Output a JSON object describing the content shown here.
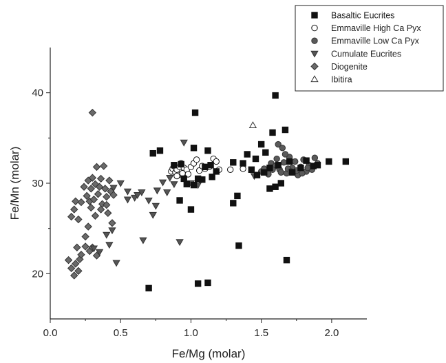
{
  "chart_data": {
    "type": "scatter",
    "title": "",
    "xlabel": "Fe/Mg (molar)",
    "ylabel": "Fe/Mn (molar)",
    "xlim": [
      0.0,
      2.25
    ],
    "ylim": [
      15,
      45
    ],
    "xticks": [
      0.0,
      0.5,
      1.0,
      1.5,
      2.0
    ],
    "xtick_labels": [
      "0.0",
      "0.5",
      "1.0",
      "1.5",
      "2.0"
    ],
    "yticks": [
      20,
      30,
      40
    ],
    "ytick_labels": [
      "20",
      "30",
      "40"
    ],
    "grid": false,
    "legend_position": "top-right",
    "series": [
      {
        "name": "Basaltic Eucrites",
        "marker": "square",
        "color": "#111111",
        "fill": "#111111",
        "points": [
          [
            0.7,
            18.4
          ],
          [
            1.05,
            18.9
          ],
          [
            1.12,
            19.0
          ],
          [
            1.34,
            23.1
          ],
          [
            1.68,
            21.5
          ],
          [
            0.92,
            28.1
          ],
          [
            1.0,
            27.1
          ],
          [
            1.3,
            27.8
          ],
          [
            1.33,
            28.6
          ],
          [
            0.73,
            33.3
          ],
          [
            0.78,
            33.6
          ],
          [
            1.02,
            33.9
          ],
          [
            1.03,
            37.8
          ],
          [
            0.88,
            32.0
          ],
          [
            0.93,
            32.1
          ],
          [
            0.95,
            30.5
          ],
          [
            0.97,
            29.9
          ],
          [
            1.02,
            29.8
          ],
          [
            1.05,
            30.5
          ],
          [
            1.08,
            30.4
          ],
          [
            1.1,
            31.8
          ],
          [
            1.12,
            33.6
          ],
          [
            1.14,
            32.0
          ],
          [
            1.15,
            30.7
          ],
          [
            1.18,
            31.3
          ],
          [
            1.3,
            32.3
          ],
          [
            1.37,
            32.2
          ],
          [
            1.4,
            33.2
          ],
          [
            1.43,
            31.5
          ],
          [
            1.46,
            32.7
          ],
          [
            1.5,
            34.3
          ],
          [
            1.53,
            33.4
          ],
          [
            1.56,
            31.7
          ],
          [
            1.58,
            35.6
          ],
          [
            1.6,
            39.7
          ],
          [
            1.62,
            32.0
          ],
          [
            1.67,
            35.9
          ],
          [
            1.7,
            32.4
          ],
          [
            1.72,
            31.2
          ],
          [
            1.78,
            31.7
          ],
          [
            1.82,
            32.5
          ],
          [
            1.87,
            31.9
          ],
          [
            1.9,
            32.0
          ],
          [
            1.98,
            32.4
          ],
          [
            2.1,
            32.4
          ],
          [
            1.56,
            29.4
          ],
          [
            1.6,
            29.6
          ],
          [
            1.64,
            30.0
          ],
          [
            1.47,
            30.9
          ],
          [
            1.52,
            31.2
          ]
        ]
      },
      {
        "name": "Emmaville High Ca Pyx",
        "marker": "circle",
        "color": "#111111",
        "fill": "#ffffff",
        "points": [
          [
            0.86,
            31.3
          ],
          [
            0.87,
            31.6
          ],
          [
            0.88,
            31.9
          ],
          [
            0.89,
            31.2
          ],
          [
            0.9,
            31.5
          ],
          [
            0.91,
            30.9
          ],
          [
            0.92,
            31.8
          ],
          [
            0.93,
            32.2
          ],
          [
            0.94,
            31.1
          ],
          [
            0.95,
            31.7
          ],
          [
            0.97,
            31.5
          ],
          [
            1.0,
            31.8
          ],
          [
            1.02,
            32.2
          ],
          [
            1.04,
            32.6
          ],
          [
            1.06,
            31.4
          ],
          [
            1.08,
            31.9
          ],
          [
            1.1,
            31.6
          ],
          [
            1.13,
            31.8
          ],
          [
            1.16,
            32.7
          ],
          [
            1.18,
            32.4
          ],
          [
            1.2,
            31.5
          ],
          [
            1.28,
            31.5
          ],
          [
            1.37,
            31.6
          ],
          [
            0.98,
            31.0
          ],
          [
            0.9,
            30.8
          ]
        ]
      },
      {
        "name": "Emmaville Low Ca Pyx",
        "marker": "circle",
        "color": "#333333",
        "fill": "#5a5a5a",
        "points": [
          [
            1.5,
            31.3
          ],
          [
            1.52,
            31.6
          ],
          [
            1.55,
            31.0
          ],
          [
            1.57,
            32.2
          ],
          [
            1.6,
            31.9
          ],
          [
            1.62,
            34.3
          ],
          [
            1.63,
            31.5
          ],
          [
            1.65,
            33.9
          ],
          [
            1.66,
            32.3
          ],
          [
            1.68,
            31.1
          ],
          [
            1.7,
            32.9
          ],
          [
            1.72,
            31.7
          ],
          [
            1.74,
            32.4
          ],
          [
            1.76,
            30.9
          ],
          [
            1.78,
            31.8
          ],
          [
            1.8,
            32.6
          ],
          [
            1.82,
            31.3
          ],
          [
            1.84,
            32.0
          ],
          [
            1.86,
            31.5
          ],
          [
            1.88,
            32.8
          ],
          [
            1.9,
            32.2
          ],
          [
            1.64,
            31.2
          ],
          [
            1.69,
            31.6
          ],
          [
            1.75,
            31.4
          ],
          [
            1.79,
            31.1
          ],
          [
            1.83,
            31.7
          ],
          [
            1.58,
            31.5
          ],
          [
            1.61,
            32.7
          ],
          [
            1.67,
            33.2
          ],
          [
            1.71,
            31.3
          ]
        ]
      },
      {
        "name": "Cumulate Eucrites",
        "marker": "triangle-down",
        "color": "#333333",
        "fill": "#555555",
        "points": [
          [
            0.31,
            22.8
          ],
          [
            0.35,
            22.4
          ],
          [
            0.4,
            24.3
          ],
          [
            0.42,
            23.2
          ],
          [
            0.44,
            24.8
          ],
          [
            0.47,
            21.2
          ],
          [
            0.45,
            29.5
          ],
          [
            0.5,
            30.0
          ],
          [
            0.55,
            29.1
          ],
          [
            0.6,
            28.4
          ],
          [
            0.62,
            28.7
          ],
          [
            0.65,
            29.0
          ],
          [
            0.66,
            23.7
          ],
          [
            0.7,
            28.1
          ],
          [
            0.73,
            26.5
          ],
          [
            0.76,
            29.2
          ],
          [
            0.8,
            30.1
          ],
          [
            0.83,
            29.0
          ],
          [
            0.85,
            30.6
          ],
          [
            0.88,
            29.9
          ],
          [
            0.92,
            23.5
          ],
          [
            0.95,
            34.5
          ],
          [
            1.0,
            30.0
          ],
          [
            1.05,
            29.8
          ],
          [
            1.45,
            30.8
          ],
          [
            0.55,
            28.2
          ],
          [
            0.75,
            27.5
          ]
        ]
      },
      {
        "name": "Diogenite",
        "marker": "diamond",
        "color": "#333333",
        "fill": "#6a6a6a",
        "points": [
          [
            0.13,
            21.5
          ],
          [
            0.15,
            20.6
          ],
          [
            0.17,
            19.8
          ],
          [
            0.18,
            21.1
          ],
          [
            0.19,
            22.9
          ],
          [
            0.2,
            20.3
          ],
          [
            0.21,
            21.6
          ],
          [
            0.22,
            22.1
          ],
          [
            0.25,
            23.0
          ],
          [
            0.28,
            22.5
          ],
          [
            0.3,
            22.9
          ],
          [
            0.33,
            22.0
          ],
          [
            0.15,
            26.3
          ],
          [
            0.17,
            27.1
          ],
          [
            0.2,
            26.0
          ],
          [
            0.18,
            28.0
          ],
          [
            0.22,
            27.9
          ],
          [
            0.24,
            29.6
          ],
          [
            0.26,
            28.6
          ],
          [
            0.27,
            30.3
          ],
          [
            0.28,
            28.0
          ],
          [
            0.29,
            29.4
          ],
          [
            0.3,
            30.6
          ],
          [
            0.31,
            28.2
          ],
          [
            0.32,
            29.9
          ],
          [
            0.33,
            31.8
          ],
          [
            0.34,
            28.8
          ],
          [
            0.35,
            29.6
          ],
          [
            0.36,
            30.5
          ],
          [
            0.37,
            27.7
          ],
          [
            0.38,
            31.9
          ],
          [
            0.39,
            29.4
          ],
          [
            0.4,
            28.5
          ],
          [
            0.41,
            26.7
          ],
          [
            0.42,
            30.3
          ],
          [
            0.43,
            29.1
          ],
          [
            0.44,
            25.6
          ],
          [
            0.45,
            28.7
          ],
          [
            0.3,
            37.8
          ],
          [
            0.27,
            25.2
          ],
          [
            0.36,
            27.1
          ],
          [
            0.32,
            26.4
          ],
          [
            0.25,
            24.1
          ],
          [
            0.29,
            27.3
          ],
          [
            0.4,
            27.6
          ]
        ]
      },
      {
        "name": "Ibitira",
        "marker": "triangle-up",
        "color": "#333333",
        "fill": "#ffffff",
        "points": [
          [
            1.44,
            36.4
          ]
        ]
      }
    ]
  }
}
